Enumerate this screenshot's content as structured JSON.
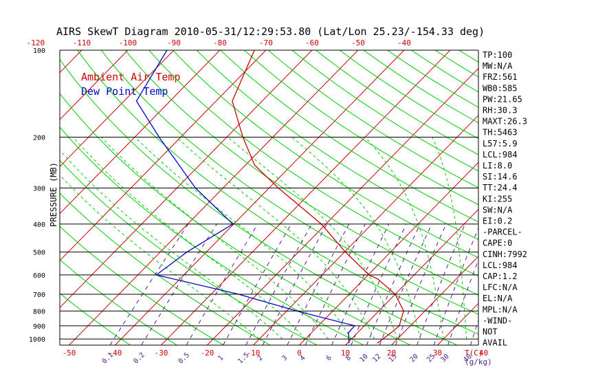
{
  "chart_data": {
    "type": "line",
    "title": "AIRS SkewT Diagram 2010-05-31/12:29:53.80 (Lat/Lon 25.23/-154.33 deg)",
    "ylabel": "PRESSURE (MB)",
    "y_scale": "log",
    "ylim": [
      1050,
      100
    ],
    "y_ticks": [
      100,
      200,
      300,
      400,
      500,
      600,
      700,
      800,
      900,
      1000
    ],
    "bottom_temp_ticks": [
      "-50",
      "-40",
      "-30",
      "-20",
      "-10",
      "0",
      "10",
      "20",
      "30",
      "40"
    ],
    "bottom_temp_values": [
      -50,
      -40,
      -30,
      -20,
      -10,
      0,
      10,
      20,
      30,
      40
    ],
    "top_temp_ticks": [
      "-120",
      "-110",
      "-100",
      "-90",
      "-80",
      "-70",
      "-60",
      "-50",
      "-40"
    ],
    "top_temp_values": [
      -120,
      -110,
      -100,
      -90,
      -80,
      -70,
      -60,
      -50,
      -40
    ],
    "unit_label_temp": "T(C)",
    "mixing_ratio_ticks": [
      "0.1",
      "0.2",
      "0.5",
      "1",
      "1.5",
      "2",
      "3",
      "4",
      "6",
      "8",
      "10",
      "12",
      "15",
      "20",
      "25",
      "30",
      "40"
    ],
    "mixing_ratio_values": [
      0.1,
      0.2,
      0.5,
      1,
      1.5,
      2,
      3,
      4,
      6,
      8,
      10,
      12,
      15,
      20,
      25,
      30,
      40
    ],
    "unit_label_mix": "(g/kg)",
    "isotherm_color": "#cc0000",
    "dry_adiabat_color": "#00cc00",
    "moist_adiabat_color": "#00cc00",
    "mixing_ratio_color": "#4b1d8f",
    "legend_placement": "top-left",
    "series": [
      {
        "name": "Ambient Air Temp",
        "color": "#cc0000",
        "points": [
          {
            "p": 1035,
            "t": 16.5
          },
          {
            "p": 1000,
            "t": 16.8
          },
          {
            "p": 950,
            "t": 17.3
          },
          {
            "p": 900,
            "t": 17.6
          },
          {
            "p": 850,
            "t": 16.5
          },
          {
            "p": 800,
            "t": 15.4
          },
          {
            "p": 700,
            "t": 10.0
          },
          {
            "p": 620,
            "t": 3.0
          },
          {
            "p": 600,
            "t": 0.2
          },
          {
            "p": 500,
            "t": -9.8
          },
          {
            "p": 400,
            "t": -21.0
          },
          {
            "p": 300,
            "t": -38.0
          },
          {
            "p": 250,
            "t": -48.0
          },
          {
            "p": 200,
            "t": -56.5
          },
          {
            "p": 150,
            "t": -66.5
          },
          {
            "p": 100,
            "t": -72.5
          }
        ]
      },
      {
        "name": "Dew Point Temp",
        "color": "#0000cc",
        "points": [
          {
            "p": 1035,
            "t": 10.4
          },
          {
            "p": 950,
            "t": 8.0
          },
          {
            "p": 900,
            "t": 7.9
          },
          {
            "p": 800,
            "t": -7.8
          },
          {
            "p": 700,
            "t": -24.0
          },
          {
            "p": 600,
            "t": -46.0
          },
          {
            "p": 500,
            "t": -44.2
          },
          {
            "p": 400,
            "t": -40.2
          },
          {
            "p": 300,
            "t": -56.0
          },
          {
            "p": 200,
            "t": -74.7
          },
          {
            "p": 150,
            "t": -87.3
          },
          {
            "p": 100,
            "t": -91.5
          }
        ]
      }
    ],
    "stats": [
      "TP:100",
      "MW:N/A",
      "FRZ:561",
      "WB0:585",
      "PW:21.65",
      "RH:30.3",
      "MAXT:26.3",
      "TH:5463",
      "L57:5.9",
      "LCL:984",
      "LI:8.0",
      "SI:14.6",
      "TT:24.4",
      "KI:255",
      "SW:N/A",
      "EI:0.2",
      "-PARCEL-",
      "CAPE:0",
      "CINH:7992",
      "LCL:984",
      "CAP:1.2",
      "LFC:N/A",
      "EL:N/A",
      "MPL:N/A",
      "-WIND-",
      "NOT",
      "AVAIL"
    ]
  }
}
